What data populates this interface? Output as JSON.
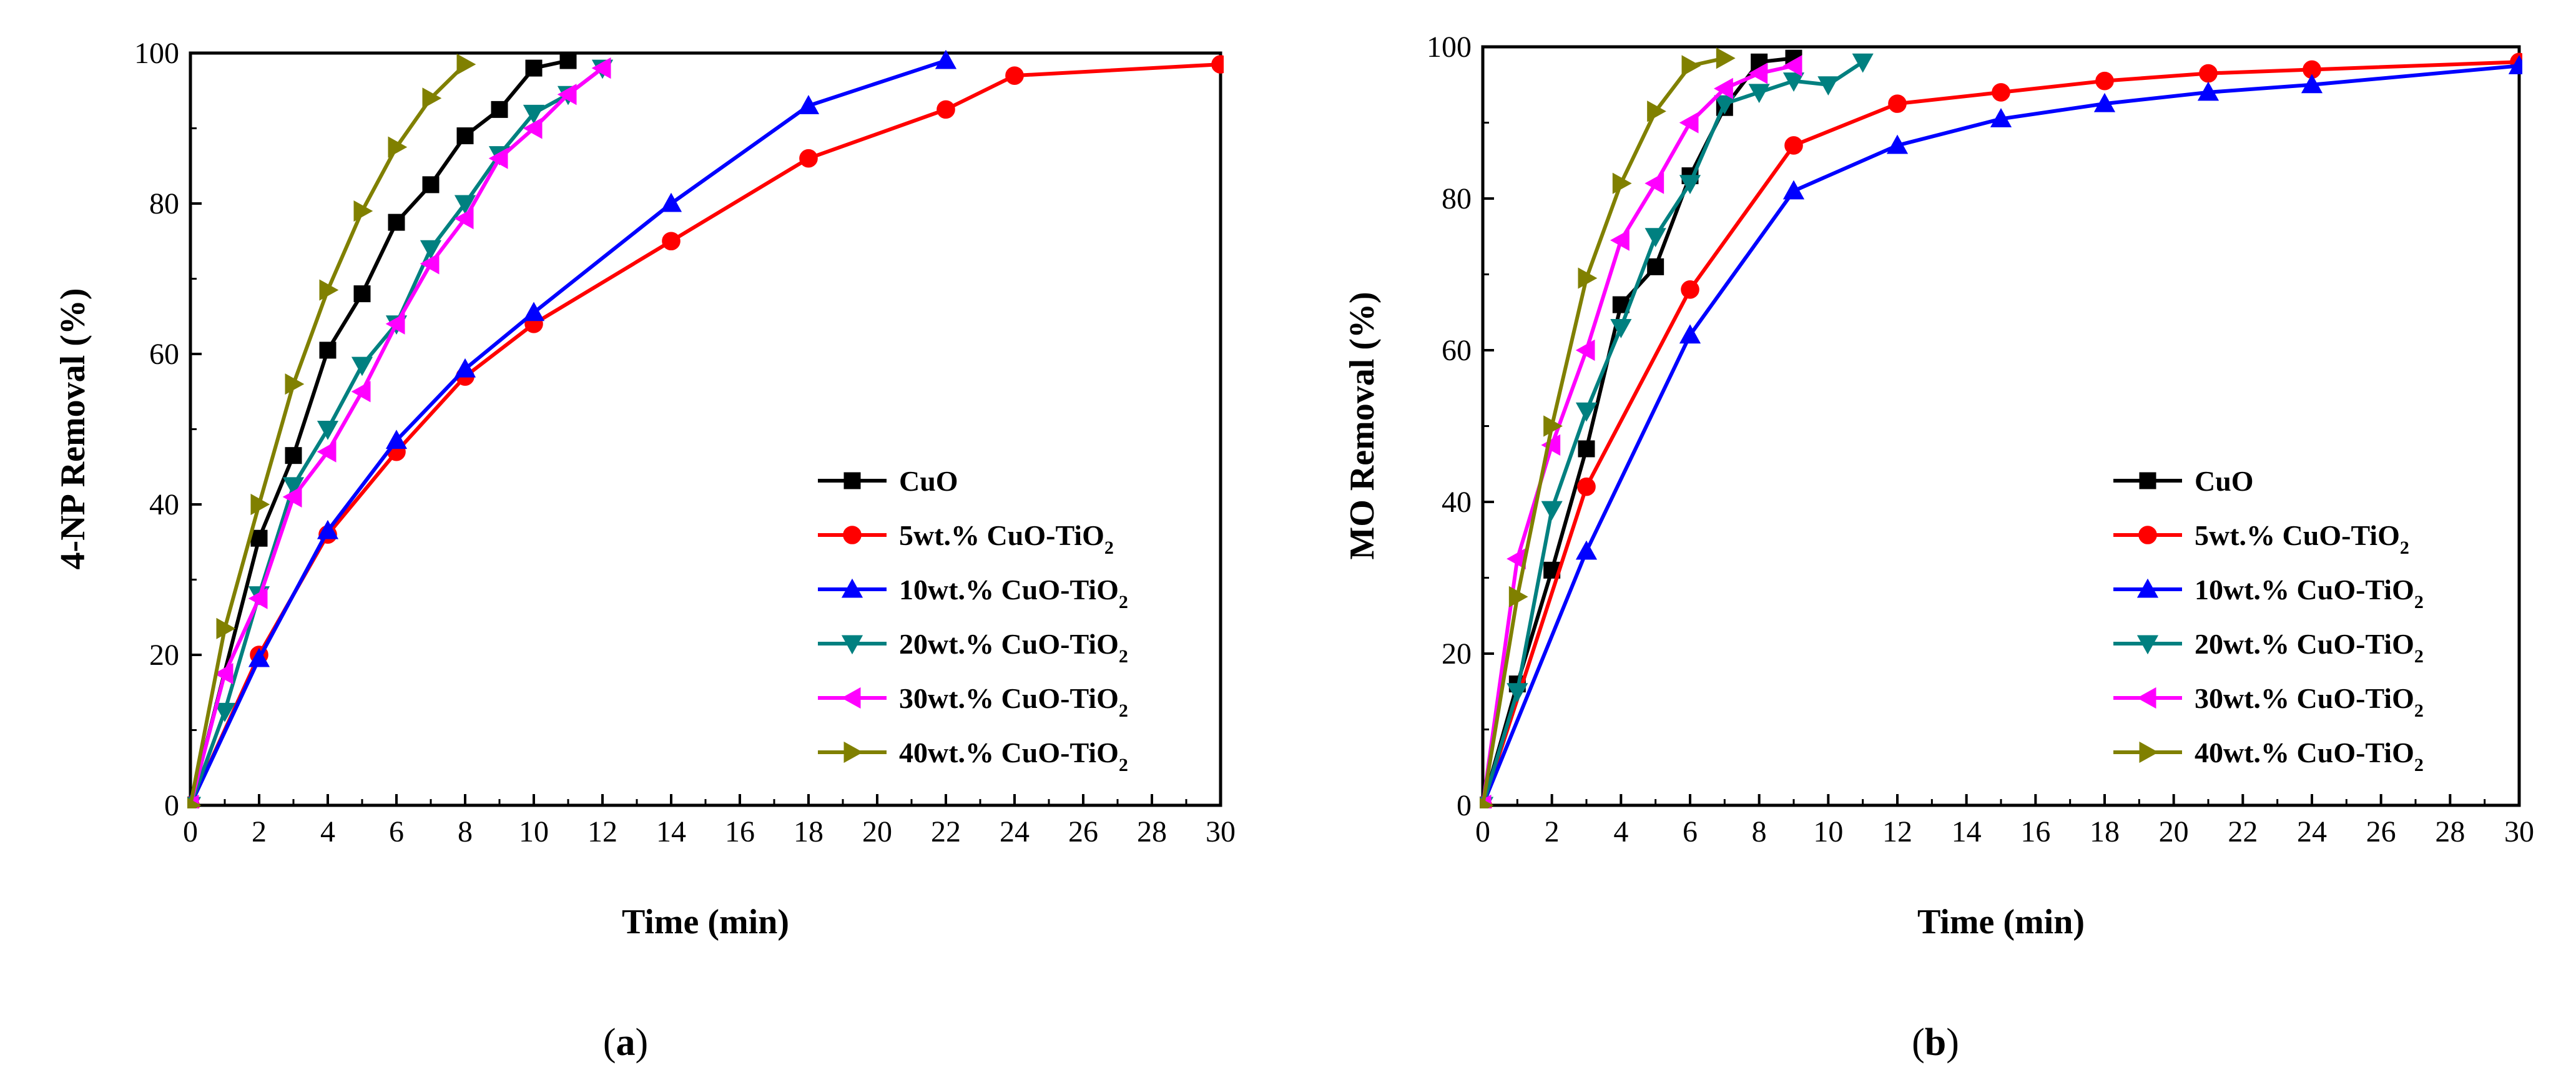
{
  "chart_data": [
    {
      "type": "line",
      "panel_label": "a",
      "title": "",
      "xlabel": "Time (min)",
      "ylabel": "4-NP Removal (%)",
      "xlim": [
        0,
        30
      ],
      "ylim": [
        0,
        100
      ],
      "xticks": [
        "0",
        "2",
        "4",
        "6",
        "8",
        "10",
        "12",
        "14",
        "16",
        "18",
        "20",
        "22",
        "24",
        "26",
        "28",
        "30"
      ],
      "yticks": [
        "0",
        "20",
        "40",
        "60",
        "80",
        "100"
      ],
      "legend_position": "bottom-right",
      "series": [
        {
          "name": "CuO",
          "label_main": "CuO",
          "label_sub": "",
          "color": "#000000",
          "marker": "square",
          "x": [
            0,
            2,
            3,
            4,
            5,
            6,
            7,
            8,
            9,
            10,
            11
          ],
          "y": [
            0,
            35.5,
            46.5,
            60.5,
            68,
            77.5,
            82.5,
            89,
            92.5,
            98,
            99
          ]
        },
        {
          "name": "5wt.% CuO-TiO2",
          "label_main": "5wt.% CuO-TiO",
          "label_sub": "2",
          "color": "#ff0000",
          "marker": "circle",
          "x": [
            0,
            2,
            4,
            6,
            8,
            10,
            14,
            18,
            22,
            24,
            30
          ],
          "y": [
            0,
            20,
            36,
            47,
            57,
            64,
            75,
            86,
            92.5,
            97,
            98.5
          ]
        },
        {
          "name": "10wt.% CuO-TiO2",
          "label_main": "10wt.% CuO-TiO",
          "label_sub": "2",
          "color": "#0000ff",
          "marker": "triangle-up",
          "x": [
            0,
            2,
            4,
            6,
            8,
            10,
            14,
            18,
            22
          ],
          "y": [
            0,
            19.5,
            36.5,
            48.5,
            58,
            65.5,
            80,
            93,
            99
          ]
        },
        {
          "name": "20wt.% CuO-TiO2",
          "label_main": "20wt.% CuO-TiO",
          "label_sub": "2",
          "color": "#008080",
          "marker": "triangle-down",
          "x": [
            0,
            1,
            2,
            3,
            4,
            5,
            6,
            7,
            8,
            9,
            10,
            11,
            12
          ],
          "y": [
            0,
            12.5,
            28,
            42.5,
            50,
            58.5,
            64,
            74,
            80,
            86.5,
            92,
            94.5,
            98
          ]
        },
        {
          "name": "30wt.% CuO-TiO2",
          "label_main": "30wt.% CuO-TiO",
          "label_sub": "2",
          "color": "#ff00ff",
          "marker": "triangle-left",
          "x": [
            0,
            1,
            2,
            3,
            4,
            5,
            6,
            7,
            8,
            9,
            10,
            11,
            12
          ],
          "y": [
            0,
            17.5,
            27.5,
            41,
            47,
            55,
            64,
            72,
            78,
            86,
            90,
            94.5,
            98
          ]
        },
        {
          "name": "40wt.% CuO-TiO2",
          "label_main": "40wt.% CuO-TiO",
          "label_sub": "2",
          "color": "#808000",
          "marker": "triangle-right",
          "x": [
            0,
            1,
            2,
            3,
            4,
            5,
            6,
            7,
            8
          ],
          "y": [
            0,
            23.5,
            40,
            56,
            68.5,
            79,
            87.5,
            94,
            98.5
          ]
        }
      ]
    },
    {
      "type": "line",
      "panel_label": "b",
      "title": "",
      "xlabel": "Time (min)",
      "ylabel": "MO Removal (%)",
      "xlim": [
        0,
        30
      ],
      "ylim": [
        0,
        100
      ],
      "xticks": [
        "0",
        "2",
        "4",
        "6",
        "8",
        "10",
        "12",
        "14",
        "16",
        "18",
        "20",
        "22",
        "24",
        "26",
        "28",
        "30"
      ],
      "yticks": [
        "0",
        "20",
        "40",
        "60",
        "80",
        "100"
      ],
      "legend_position": "bottom-right",
      "series": [
        {
          "name": "CuO",
          "label_main": "CuO",
          "label_sub": "",
          "color": "#000000",
          "marker": "square",
          "x": [
            0,
            1,
            2,
            3,
            4,
            5,
            6,
            7,
            8,
            9
          ],
          "y": [
            0,
            16,
            31,
            47,
            66,
            71,
            83,
            92,
            98,
            98.5
          ]
        },
        {
          "name": "5wt.% CuO-TiO2",
          "label_main": "5wt.% CuO-TiO",
          "label_sub": "2",
          "color": "#ff0000",
          "marker": "circle",
          "x": [
            0,
            3,
            6,
            9,
            12,
            15,
            18,
            21,
            24,
            30
          ],
          "y": [
            0,
            42,
            68,
            87,
            92.5,
            94,
            95.5,
            96.5,
            97,
            98
          ]
        },
        {
          "name": "10wt.% CuO-TiO2",
          "label_main": "10wt.% CuO-TiO",
          "label_sub": "2",
          "color": "#0000ff",
          "marker": "triangle-up",
          "x": [
            0,
            3,
            6,
            9,
            12,
            15,
            18,
            21,
            24,
            30
          ],
          "y": [
            0,
            33.5,
            62,
            81,
            87,
            90.5,
            92.5,
            94,
            95,
            97.5
          ]
        },
        {
          "name": "20wt.% CuO-TiO2",
          "label_main": "20wt.% CuO-TiO",
          "label_sub": "2",
          "color": "#008080",
          "marker": "triangle-down",
          "x": [
            0,
            1,
            2,
            3,
            4,
            5,
            6,
            7,
            8,
            9,
            10,
            11
          ],
          "y": [
            0,
            15,
            39,
            52,
            63,
            75,
            82,
            92.5,
            94,
            95.5,
            95,
            98
          ]
        },
        {
          "name": "30wt.% CuO-TiO2",
          "label_main": "30wt.% CuO-TiO",
          "label_sub": "2",
          "color": "#ff00ff",
          "marker": "triangle-left",
          "x": [
            0,
            1,
            2,
            3,
            4,
            5,
            6,
            7,
            8,
            9
          ],
          "y": [
            0,
            32.5,
            47.5,
            60,
            74.5,
            82,
            90,
            94.5,
            96.5,
            97.5
          ]
        },
        {
          "name": "40wt.% CuO-TiO2",
          "label_main": "40wt.% CuO-TiO",
          "label_sub": "2",
          "color": "#808000",
          "marker": "triangle-right",
          "x": [
            0,
            1,
            2,
            3,
            4,
            5,
            6,
            7
          ],
          "y": [
            0,
            27.5,
            50,
            69.5,
            82,
            91.5,
            97.5,
            98.5
          ]
        }
      ]
    }
  ]
}
